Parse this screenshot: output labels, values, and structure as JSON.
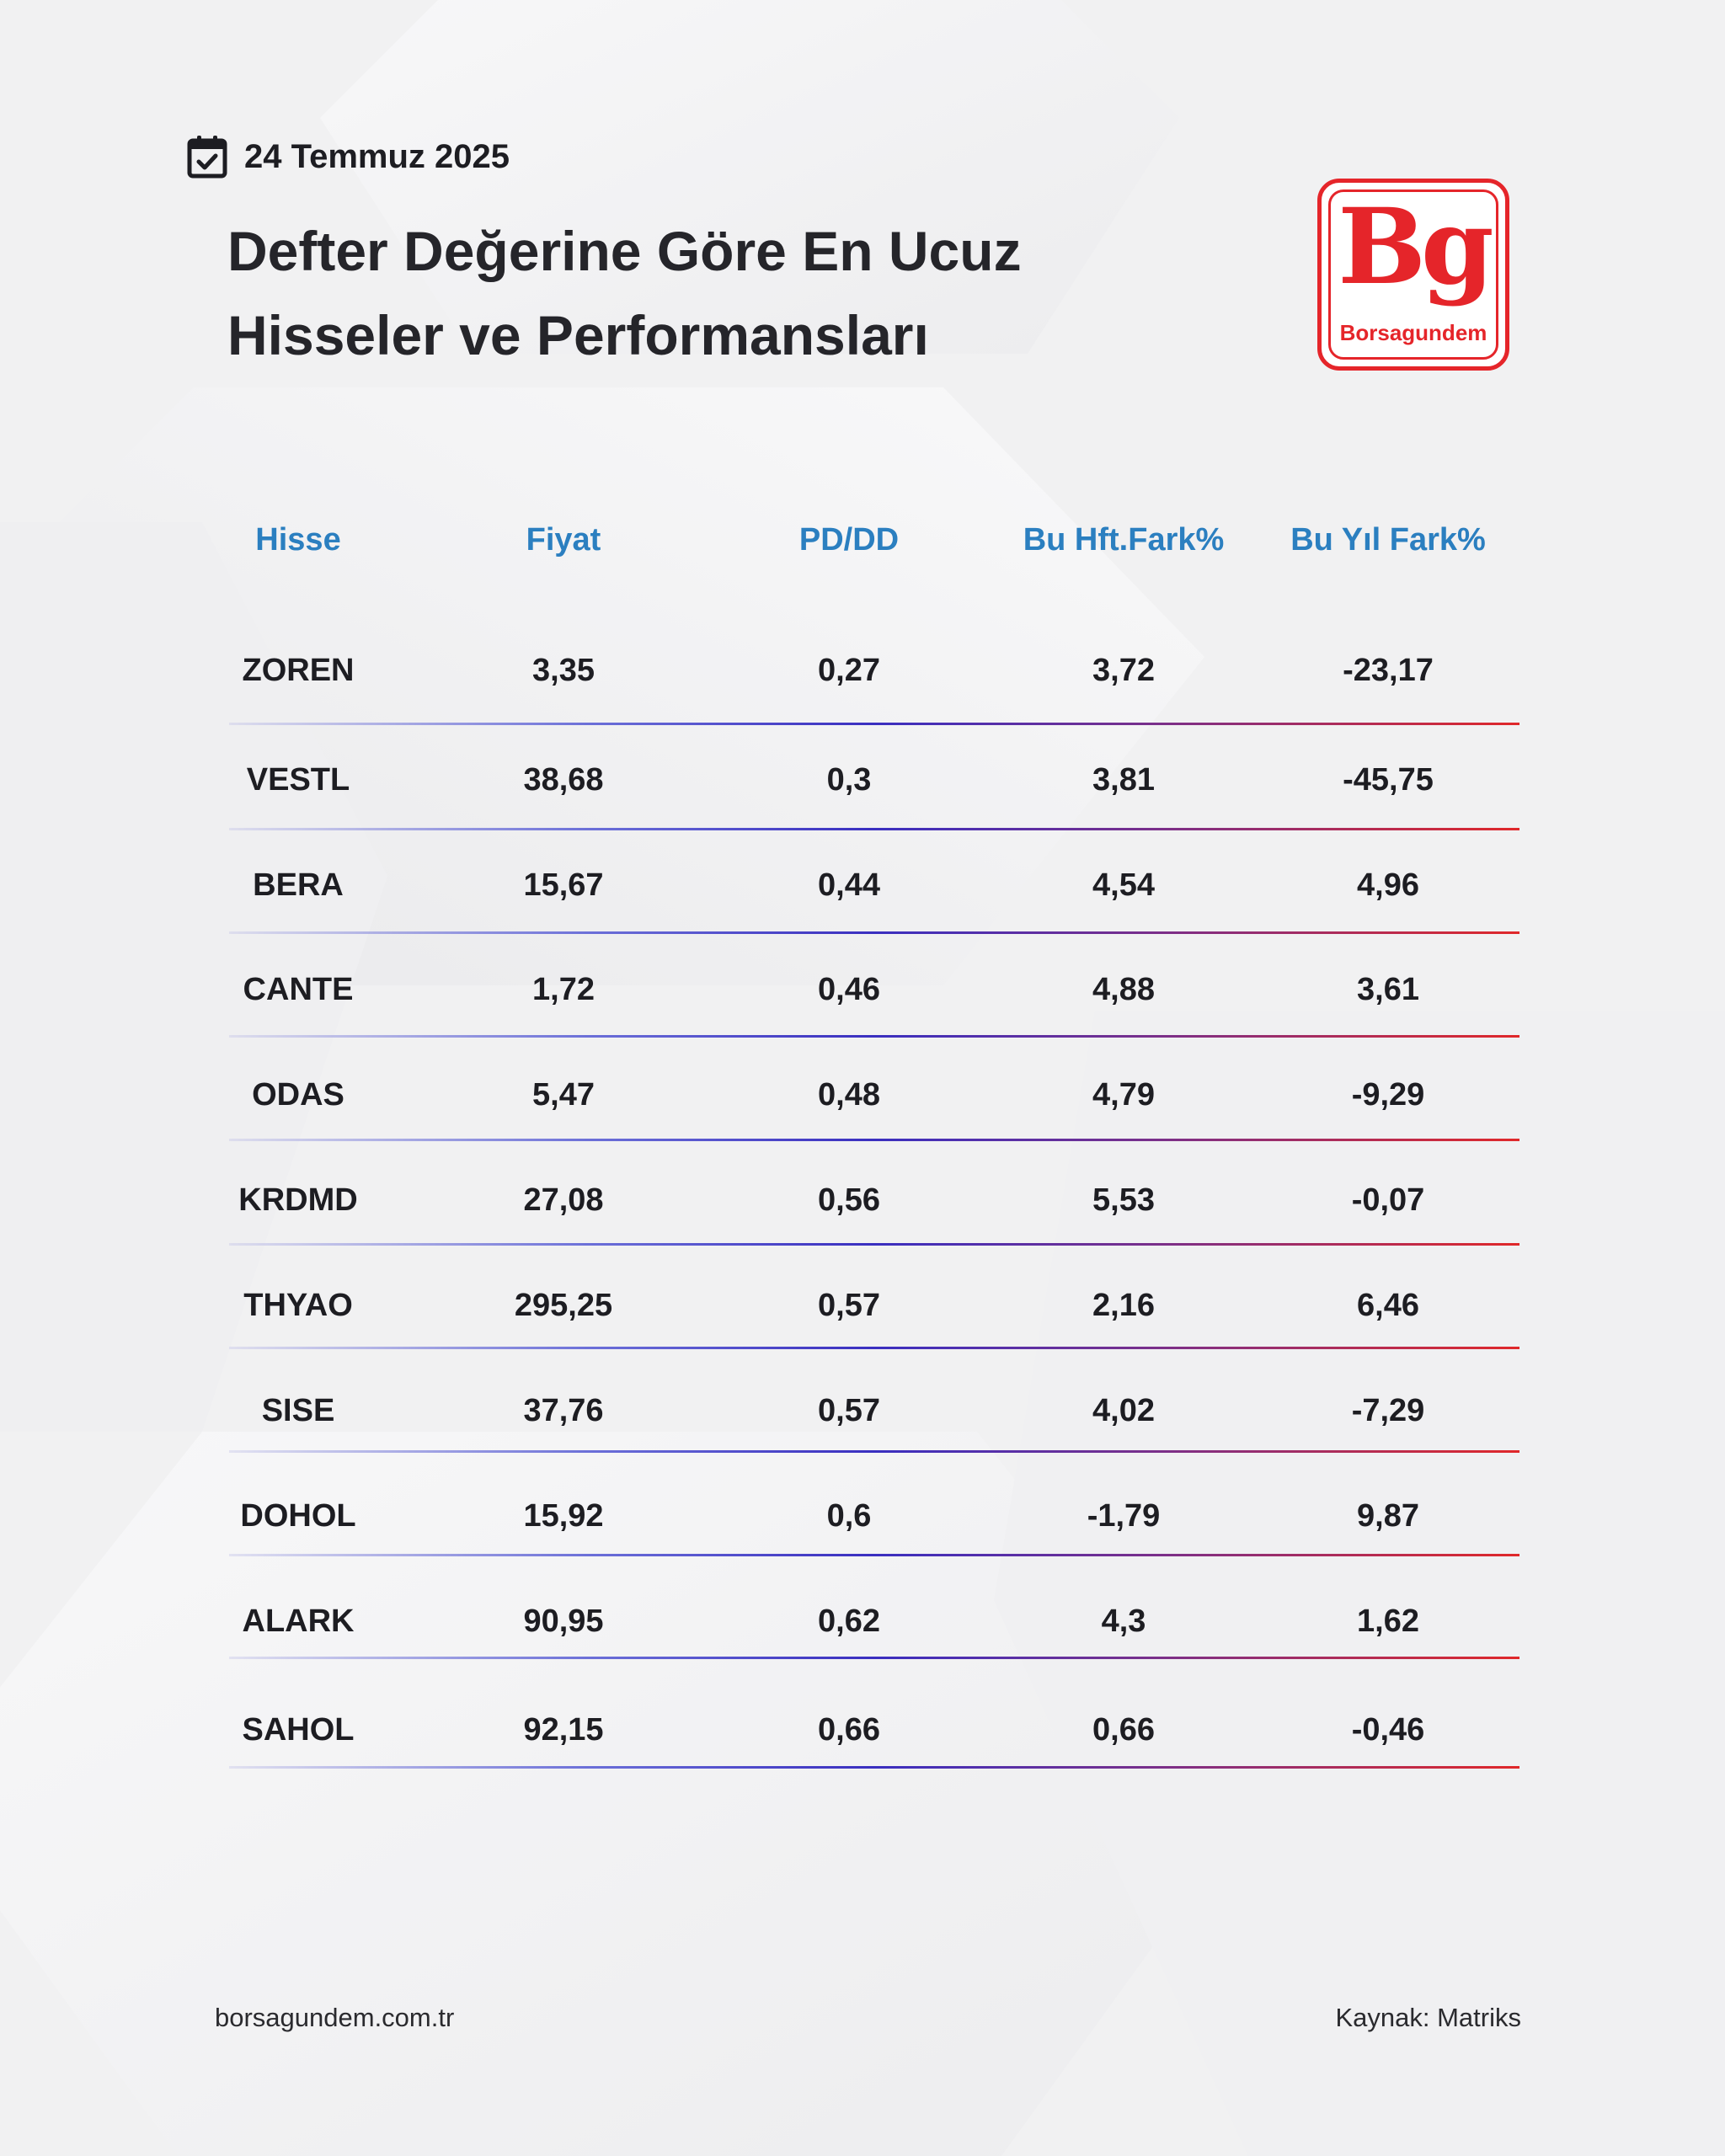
{
  "header": {
    "date": "24 Temmuz 2025",
    "title_line1": "Defter Değerine Göre En Ucuz",
    "title_line2": "Hisseler ve Performansları"
  },
  "logo": {
    "mark": "Bg",
    "name": "Borsagundem",
    "color": "#e5252a"
  },
  "table": {
    "columns": [
      "Hisse",
      "Fiyat",
      "PD/DD",
      "Bu Hft.Fark%",
      "Bu Yıl Fark%"
    ],
    "rows": [
      [
        "ZOREN",
        "3,35",
        "0,27",
        "3,72",
        "-23,17"
      ],
      [
        "VESTL",
        "38,68",
        "0,3",
        "3,81",
        "-45,75"
      ],
      [
        "BERA",
        "15,67",
        "0,44",
        "4,54",
        "4,96"
      ],
      [
        "CANTE",
        "1,72",
        "0,46",
        "4,88",
        "3,61"
      ],
      [
        "ODAS",
        "5,47",
        "0,48",
        "4,79",
        "-9,29"
      ],
      [
        "KRDMD",
        "27,08",
        "0,56",
        "5,53",
        "-0,07"
      ],
      [
        "THYAO",
        "295,25",
        "0,57",
        "2,16",
        "6,46"
      ],
      [
        "SISE",
        "37,76",
        "0,57",
        "4,02",
        "-7,29"
      ],
      [
        "DOHOL",
        "15,92",
        "0,6",
        "-1,79",
        "9,87"
      ],
      [
        "ALARK",
        "90,95",
        "0,62",
        "4,3",
        "1,62"
      ],
      [
        "SAHOL",
        "92,15",
        "0,66",
        "0,66",
        "-0,46"
      ]
    ]
  },
  "footer": {
    "website": "borsagundem.com.tr",
    "source": "Kaynak:  Matriks"
  },
  "colors": {
    "header_text": "#2b7fc0",
    "accent_red": "#e5252a"
  }
}
